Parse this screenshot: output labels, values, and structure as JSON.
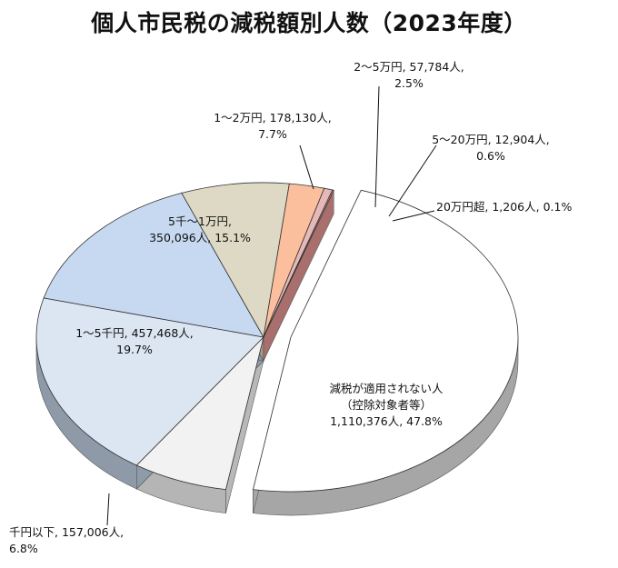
{
  "chart_data": {
    "type": "pie",
    "title": "個人市民税の減税額別人数（2023年度）",
    "slices": [
      {
        "category": "減税が適用されない人",
        "category2": "（控除対象者等）",
        "count": "1,110,376人",
        "percent_label": "47.8%",
        "value": 47.8,
        "fill": "#ffffff",
        "side": "#a6a6a6",
        "exploded": true
      },
      {
        "category": "千円以下",
        "count": "157,006人",
        "percent_label": "6.8%",
        "value": 6.8,
        "fill": "#f2f2f2",
        "side": "#b5b5b5"
      },
      {
        "category": "1～5千円",
        "count": "457,468人",
        "percent_label": "19.7%",
        "value": 19.7,
        "fill": "#dce6f2",
        "side": "#8e9aa8"
      },
      {
        "category": "5千～1万円",
        "count": "350,096人",
        "percent_label": "15.1%",
        "value": 15.1,
        "fill": "#c6d9f1",
        "side": "#8194aa"
      },
      {
        "category": "1～2万円",
        "count": "178,130人",
        "percent_label": "7.7%",
        "value": 7.7,
        "fill": "#ddd9c4",
        "side": "#a39d85"
      },
      {
        "category": "2～5万円",
        "count": "57,784人",
        "percent_label": "2.5%",
        "value": 2.5,
        "fill": "#fbbf9d",
        "side": "#c98a6e"
      },
      {
        "category": "5～20万円",
        "count": "12,904人",
        "percent_label": "0.6%",
        "value": 0.6,
        "fill": "#e6b9b8",
        "side": "#b58a89"
      },
      {
        "category": "20万円超",
        "count": "1,206人",
        "percent_label": "0.1%",
        "value": 0.1,
        "fill": "#d99694",
        "side": "#a86f6d"
      }
    ]
  }
}
